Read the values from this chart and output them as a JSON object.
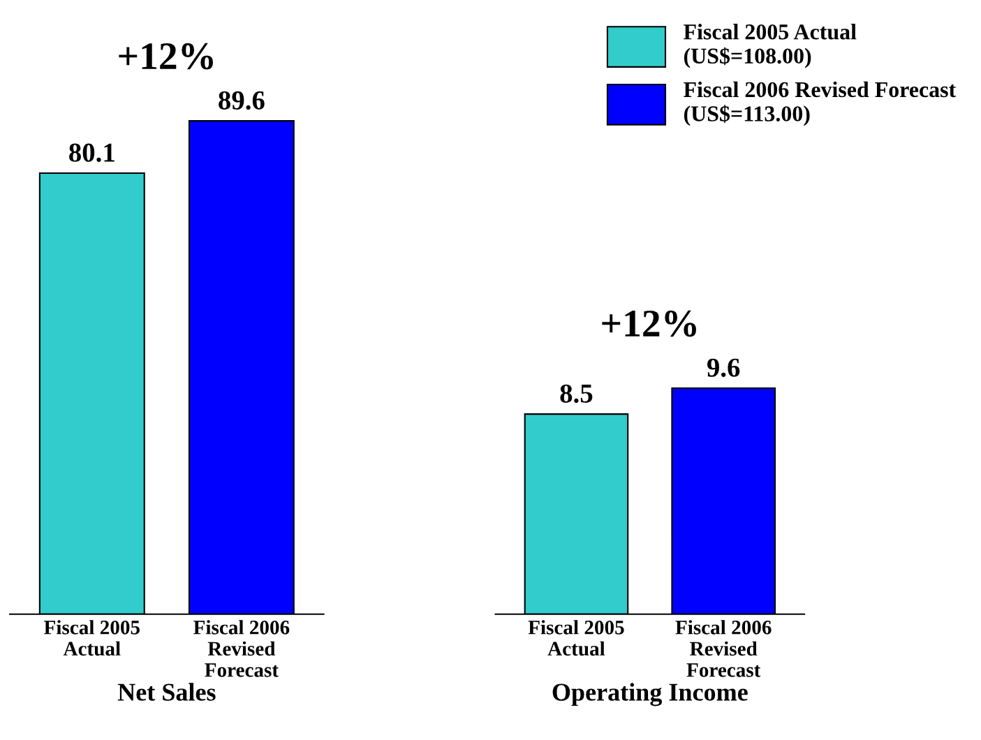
{
  "chart_data": [
    {
      "type": "bar",
      "xlabel": "Net Sales",
      "categories": [
        "Fiscal 2005\nActual",
        "Fiscal 2006\nRevised\nForecast"
      ],
      "series": [
        {
          "name": "Fiscal 2005 Actual\n(US$=108.00)",
          "color": "#33cccc",
          "values": [
            80.1,
            null
          ]
        },
        {
          "name": "Fiscal 2006 Revised Forecast\n(US$=113.00)",
          "color": "#0000ff",
          "values": [
            null,
            89.6
          ]
        }
      ],
      "tick_labels": "x",
      "data_labels": true,
      "annotations": [
        "+12%"
      ],
      "grid": false,
      "legend": "top right"
    },
    {
      "type": "bar",
      "xlabel": "Operating Income",
      "categories": [
        "Fiscal 2005\nActual",
        "Fiscal 2006\nRevised\nForecast"
      ],
      "series": [
        {
          "color": "#33cccc",
          "values": [
            8.5,
            null
          ]
        },
        {
          "color": "#0000ff",
          "values": [
            null,
            9.6
          ]
        }
      ],
      "tick_labels": "x",
      "data_labels": true,
      "annotations": [
        "+12%"
      ],
      "grid": false
    }
  ]
}
